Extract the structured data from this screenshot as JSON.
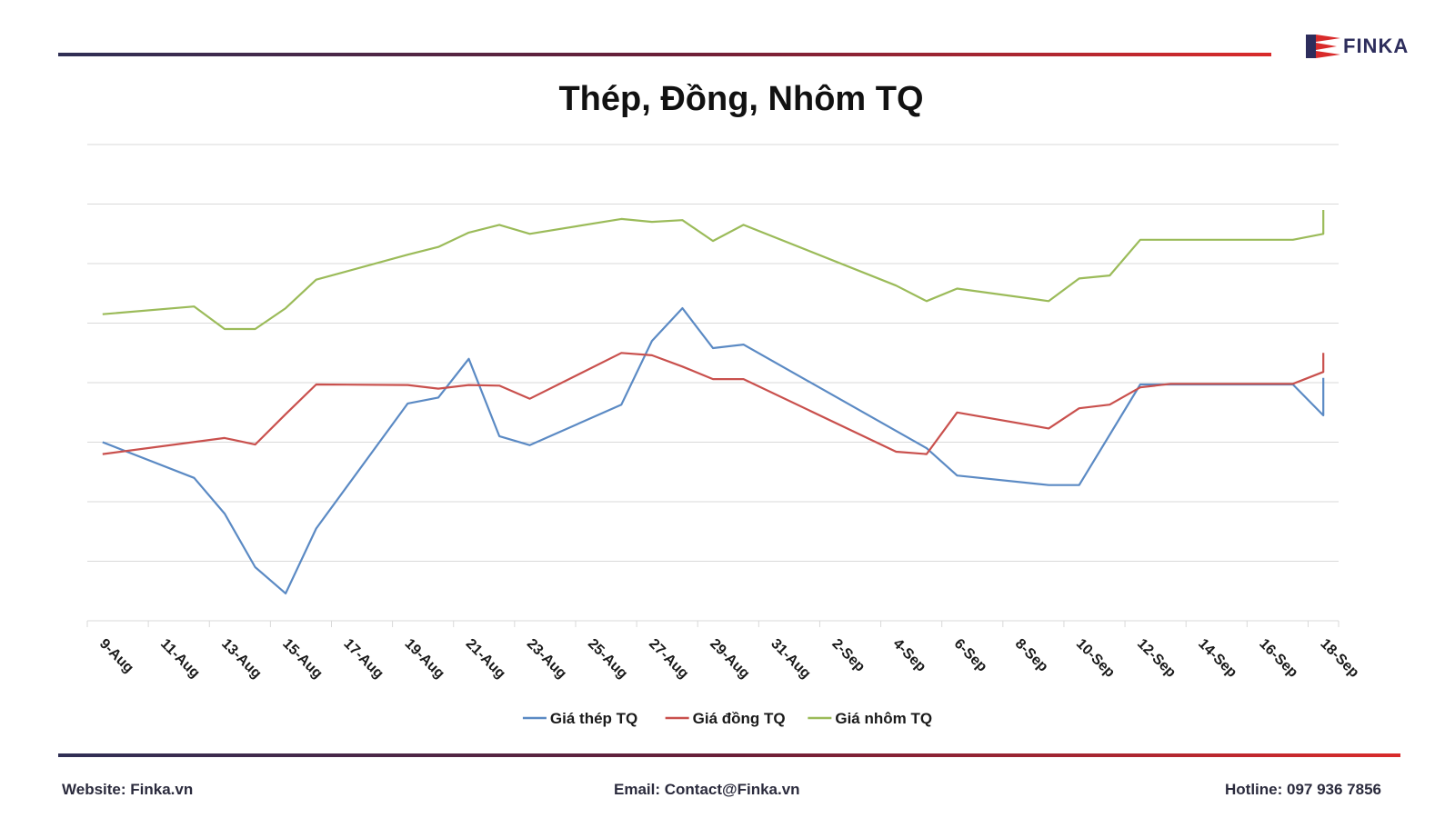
{
  "brand": {
    "logo_text": "FINKA",
    "primary_color": "#2d2d5c",
    "accent_color": "#d92b2b"
  },
  "chart_data": {
    "type": "line",
    "title": "Thép, Đồng, Nhôm TQ",
    "xlabel": "",
    "ylabel": "",
    "grid": true,
    "y_axis_labels_shown": false,
    "legend_position": "bottom",
    "x_tick_labels": [
      "9-Aug",
      "11-Aug",
      "13-Aug",
      "15-Aug",
      "17-Aug",
      "19-Aug",
      "21-Aug",
      "23-Aug",
      "25-Aug",
      "27-Aug",
      "29-Aug",
      "31-Aug",
      "2-Sep",
      "4-Sep",
      "6-Sep",
      "8-Sep",
      "10-Sep",
      "12-Sep",
      "14-Sep",
      "16-Sep",
      "18-Sep"
    ],
    "x_range": [
      "9-Aug",
      "18-Sep"
    ],
    "ylim": [
      0,
      8
    ],
    "series": [
      {
        "name": "Giá thép TQ",
        "color": "#5b8ac4",
        "points": [
          [
            "9-Aug",
            3.0
          ],
          [
            "12-Aug",
            2.4
          ],
          [
            "13-Aug",
            1.8
          ],
          [
            "14-Aug",
            0.9
          ],
          [
            "15-Aug",
            0.46
          ],
          [
            "16-Aug",
            1.55
          ],
          [
            "19-Aug",
            3.65
          ],
          [
            "20-Aug",
            3.75
          ],
          [
            "21-Aug",
            4.4
          ],
          [
            "22-Aug",
            3.1
          ],
          [
            "23-Aug",
            2.95
          ],
          [
            "26-Aug",
            3.63
          ],
          [
            "27-Aug",
            4.7
          ],
          [
            "28-Aug",
            5.25
          ],
          [
            "29-Aug",
            4.58
          ],
          [
            "30-Aug",
            4.64
          ],
          [
            "5-Sep",
            2.9
          ],
          [
            "6-Sep",
            2.44
          ],
          [
            "9-Sep",
            2.28
          ],
          [
            "10-Sep",
            2.28
          ],
          [
            "12-Sep",
            3.97
          ],
          [
            "17-Sep",
            3.97
          ],
          [
            "18-Sep",
            3.45
          ],
          [
            "18-Sep",
            4.08
          ]
        ]
      },
      {
        "name": "Giá đồng TQ",
        "color": "#c9504d",
        "points": [
          [
            "9-Aug",
            2.8
          ],
          [
            "13-Aug",
            3.07
          ],
          [
            "14-Aug",
            2.96
          ],
          [
            "15-Aug",
            3.47
          ],
          [
            "16-Aug",
            3.97
          ],
          [
            "19-Aug",
            3.96
          ],
          [
            "20-Aug",
            3.9
          ],
          [
            "21-Aug",
            3.96
          ],
          [
            "22-Aug",
            3.95
          ],
          [
            "23-Aug",
            3.73
          ],
          [
            "26-Aug",
            4.5
          ],
          [
            "27-Aug",
            4.46
          ],
          [
            "28-Aug",
            4.27
          ],
          [
            "29-Aug",
            4.06
          ],
          [
            "30-Aug",
            4.06
          ],
          [
            "4-Sep",
            2.84
          ],
          [
            "5-Sep",
            2.8
          ],
          [
            "6-Sep",
            3.5
          ],
          [
            "9-Sep",
            3.23
          ],
          [
            "10-Sep",
            3.57
          ],
          [
            "11-Sep",
            3.63
          ],
          [
            "12-Sep",
            3.92
          ],
          [
            "13-Sep",
            3.98
          ],
          [
            "17-Sep",
            3.98
          ],
          [
            "18-Sep",
            4.18
          ],
          [
            "18-Sep",
            4.5
          ]
        ]
      },
      {
        "name": "Giá nhôm TQ",
        "color": "#9bbb59",
        "points": [
          [
            "9-Aug",
            5.15
          ],
          [
            "12-Aug",
            5.28
          ],
          [
            "13-Aug",
            4.9
          ],
          [
            "14-Aug",
            4.9
          ],
          [
            "15-Aug",
            5.25
          ],
          [
            "16-Aug",
            5.73
          ],
          [
            "19-Aug",
            6.15
          ],
          [
            "20-Aug",
            6.28
          ],
          [
            "21-Aug",
            6.52
          ],
          [
            "22-Aug",
            6.65
          ],
          [
            "23-Aug",
            6.5
          ],
          [
            "26-Aug",
            6.75
          ],
          [
            "27-Aug",
            6.7
          ],
          [
            "28-Aug",
            6.73
          ],
          [
            "29-Aug",
            6.38
          ],
          [
            "30-Aug",
            6.65
          ],
          [
            "4-Sep",
            5.63
          ],
          [
            "5-Sep",
            5.37
          ],
          [
            "6-Sep",
            5.58
          ],
          [
            "9-Sep",
            5.37
          ],
          [
            "10-Sep",
            5.75
          ],
          [
            "11-Sep",
            5.8
          ],
          [
            "12-Sep",
            6.4
          ],
          [
            "17-Sep",
            6.4
          ],
          [
            "18-Sep",
            6.5
          ],
          [
            "18-Sep",
            6.9
          ]
        ]
      }
    ]
  },
  "footer": {
    "website": "Website: Finka.vn",
    "email": "Email: Contact@Finka.vn",
    "hotline": "Hotline: 097 936 7856"
  }
}
